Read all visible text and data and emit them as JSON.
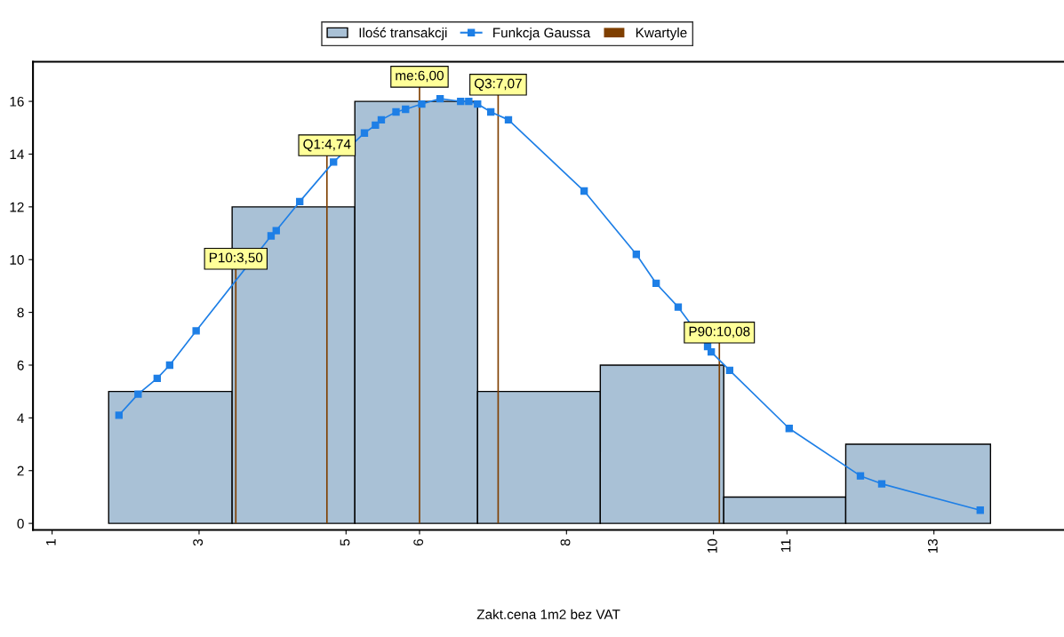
{
  "chart_data": {
    "type": "histogram",
    "xlabel": "Zakt.cena 1m2 bez VAT",
    "xlim": [
      0.74,
      14.77
    ],
    "xticks": [
      1,
      3,
      5,
      6,
      8,
      10,
      11,
      13
    ],
    "ylim": [
      -0.25,
      17.5
    ],
    "yticks": [
      0,
      2,
      4,
      6,
      8,
      10,
      12,
      14,
      16
    ],
    "grid": false,
    "legend": "top",
    "series": [
      {
        "name": "Ilość transakcji",
        "color": "#a9c1d6",
        "bins": [
          1.77,
          3.45,
          5.12,
          6.79,
          8.46,
          10.14,
          11.8,
          13.77
        ],
        "values": [
          5,
          12,
          16,
          5,
          6,
          1,
          3
        ]
      },
      {
        "name": "Funkcja Gaussa",
        "type": "line",
        "color": "#1e7fe6",
        "marker": "square",
        "line_style": "solid",
        "x": [
          1.91,
          2.17,
          2.43,
          2.6,
          2.96,
          3.98,
          4.05,
          4.37,
          4.83,
          5.25,
          5.4,
          5.48,
          5.68,
          5.81,
          6.03,
          6.28,
          6.56,
          6.67,
          6.79,
          6.97,
          7.21,
          8.24,
          8.95,
          9.22,
          9.52,
          9.92,
          9.97,
          10.22,
          11.03,
          12.0,
          12.29,
          13.63
        ],
        "values": [
          4.1,
          4.9,
          5.5,
          6.0,
          7.3,
          10.9,
          11.1,
          12.2,
          13.7,
          14.8,
          15.1,
          15.3,
          15.6,
          15.7,
          15.9,
          16.1,
          16.0,
          16.0,
          15.9,
          15.6,
          15.3,
          12.6,
          10.2,
          9.1,
          8.2,
          6.7,
          6.5,
          5.8,
          3.6,
          1.8,
          1.5,
          0.5
        ]
      },
      {
        "name": "Kwartyle",
        "type": "bar",
        "color": "#7f3f00",
        "x": [
          3.5,
          4.74,
          6.0,
          7.07,
          10.08
        ],
        "values": [
          9.7,
          14.0,
          16.6,
          16.3,
          6.9
        ]
      }
    ],
    "annotations": [
      {
        "text": "P10:3,50",
        "x": 3.5,
        "y": 9.7
      },
      {
        "text": "Q1:4,74",
        "x": 4.74,
        "y": 14.0
      },
      {
        "text": "me:6,00",
        "x": 6.0,
        "y": 16.6
      },
      {
        "text": "Q3:7,07",
        "x": 7.07,
        "y": 16.3
      },
      {
        "text": "P90:10,08",
        "x": 10.08,
        "y": 6.9
      }
    ]
  }
}
